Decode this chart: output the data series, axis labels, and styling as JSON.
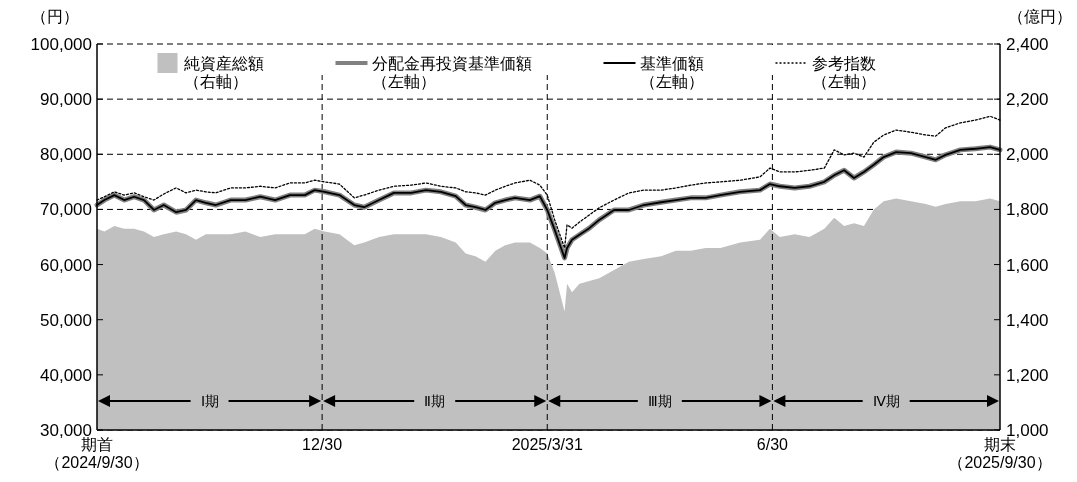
{
  "chart_data": {
    "type": "line",
    "ylabel": "（円）",
    "y2label": "（億円）",
    "x": [
      "2024-09-30",
      "2024-10-03",
      "2024-10-07",
      "2024-10-11",
      "2024-10-15",
      "2024-10-19",
      "2024-10-23",
      "2024-10-27",
      "2024-11-01",
      "2024-11-05",
      "2024-11-09",
      "2024-11-13",
      "2024-11-17",
      "2024-11-23",
      "2024-11-29",
      "2024-12-05",
      "2024-12-11",
      "2024-12-17",
      "2024-12-23",
      "2024-12-27",
      "2024-12-31",
      "2025-01-06",
      "2025-01-12",
      "2025-01-16",
      "2025-01-22",
      "2025-01-28",
      "2025-02-04",
      "2025-02-10",
      "2025-02-16",
      "2025-02-22",
      "2025-02-26",
      "2025-03-02",
      "2025-03-06",
      "2025-03-10",
      "2025-03-14",
      "2025-03-18",
      "2025-03-24",
      "2025-03-28",
      "2025-03-31",
      "2025-04-03",
      "2025-04-07",
      "2025-04-08",
      "2025-04-10",
      "2025-04-13",
      "2025-04-17",
      "2025-04-21",
      "2025-04-27",
      "2025-05-03",
      "2025-05-09",
      "2025-05-16",
      "2025-05-22",
      "2025-05-28",
      "2025-06-03",
      "2025-06-09",
      "2025-06-17",
      "2025-06-25",
      "2025-06-29",
      "2025-07-03",
      "2025-07-09",
      "2025-07-15",
      "2025-07-21",
      "2025-07-25",
      "2025-07-29",
      "2025-08-02",
      "2025-08-06",
      "2025-08-10",
      "2025-08-14",
      "2025-08-19",
      "2025-08-25",
      "2025-08-31",
      "2025-09-04",
      "2025-09-08",
      "2025-09-14",
      "2025-09-20",
      "2025-09-26",
      "2025-09-30"
    ],
    "series": [
      {
        "name": "純資産総額（右軸）",
        "type": "area",
        "axis": "y2",
        "color": "#c0c0c0",
        "values": [
          1730,
          1720,
          1740,
          1730,
          1730,
          1720,
          1700,
          1710,
          1720,
          1710,
          1690,
          1710,
          1710,
          1710,
          1720,
          1700,
          1710,
          1710,
          1710,
          1730,
          1720,
          1710,
          1670,
          1680,
          1700,
          1710,
          1710,
          1710,
          1700,
          1680,
          1640,
          1630,
          1610,
          1650,
          1670,
          1680,
          1680,
          1660,
          1640,
          1570,
          1430,
          1530,
          1500,
          1530,
          1540,
          1550,
          1580,
          1610,
          1620,
          1630,
          1650,
          1650,
          1660,
          1660,
          1680,
          1690,
          1730,
          1700,
          1710,
          1700,
          1730,
          1770,
          1740,
          1750,
          1740,
          1800,
          1830,
          1840,
          1830,
          1820,
          1810,
          1820,
          1830,
          1830,
          1840,
          1830
        ]
      },
      {
        "name": "分配金再投資基準価額（左軸）",
        "color": "#808080",
        "values": [
          70800,
          71700,
          72600,
          71700,
          72300,
          71700,
          69900,
          70800,
          69500,
          69900,
          71700,
          71200,
          70800,
          71700,
          71700,
          72300,
          71700,
          72600,
          72600,
          73500,
          73200,
          72600,
          70800,
          70400,
          71700,
          73000,
          73000,
          73500,
          73200,
          72400,
          70800,
          70400,
          69900,
          71200,
          71700,
          72100,
          71700,
          72400,
          69900,
          66300,
          61200,
          63000,
          64500,
          65400,
          66600,
          68100,
          69900,
          69900,
          70800,
          71300,
          71700,
          72100,
          72100,
          72600,
          73200,
          73500,
          74600,
          74200,
          73900,
          74200,
          75000,
          76200,
          77100,
          75700,
          76800,
          78100,
          79500,
          80400,
          80200,
          79500,
          79000,
          79900,
          80800,
          81000,
          81300,
          80800
        ]
      },
      {
        "name": "基準価額（左軸）",
        "color": "#000000",
        "values": [
          70800,
          71700,
          72600,
          71700,
          72300,
          71700,
          69900,
          70800,
          69500,
          69900,
          71700,
          71200,
          70800,
          71700,
          71700,
          72300,
          71700,
          72600,
          72600,
          73500,
          73200,
          72600,
          70800,
          70400,
          71700,
          73000,
          73000,
          73500,
          73200,
          72400,
          70800,
          70400,
          69900,
          71200,
          71700,
          72100,
          71700,
          72400,
          69900,
          66300,
          61200,
          63000,
          64500,
          65400,
          66600,
          68100,
          69900,
          69900,
          70800,
          71300,
          71700,
          72100,
          72100,
          72600,
          73200,
          73500,
          74600,
          74200,
          73900,
          74200,
          75000,
          76200,
          77100,
          75700,
          76800,
          78100,
          79500,
          80400,
          80200,
          79500,
          79000,
          79900,
          80800,
          81000,
          81300,
          80800
        ]
      },
      {
        "name": "参考指数（左軸）",
        "color": "#000000",
        "line_style": "dotted",
        "values": [
          71700,
          72300,
          73200,
          72600,
          73000,
          72300,
          71700,
          72800,
          73900,
          73000,
          73500,
          73200,
          73000,
          73900,
          73900,
          74200,
          73900,
          74800,
          74800,
          75300,
          75000,
          74600,
          72100,
          72600,
          73500,
          74200,
          74400,
          74800,
          74200,
          73900,
          73200,
          73000,
          72600,
          73500,
          74200,
          74800,
          75300,
          74400,
          72600,
          68100,
          63000,
          67200,
          66600,
          67700,
          69000,
          70300,
          71700,
          73000,
          73500,
          73500,
          73900,
          74400,
          74800,
          75000,
          75300,
          75900,
          77500,
          76800,
          76800,
          77100,
          77500,
          80800,
          79900,
          80200,
          79500,
          82200,
          83500,
          84400,
          84000,
          83500,
          83300,
          84800,
          85700,
          86200,
          86900,
          86200
        ]
      }
    ],
    "xlim": [
      "2024-09-30",
      "2025-09-30"
    ],
    "xticks": [
      {
        "value": "2024-09-30",
        "label": "期首（2024/9/30）"
      },
      {
        "value": "2024-12-30",
        "label": "12/30"
      },
      {
        "value": "2025-03-31",
        "label": "2025/3/31"
      },
      {
        "value": "2025-06-30",
        "label": "6/30"
      },
      {
        "value": "2025-09-30",
        "label": "期末（2025/9/30）"
      }
    ],
    "ylim": [
      30000,
      100000
    ],
    "yticks": [
      {
        "value": 30000,
        "label": "30,000"
      },
      {
        "value": 40000,
        "label": "40,000"
      },
      {
        "value": 50000,
        "label": "50,000"
      },
      {
        "value": 60000,
        "label": "60,000"
      },
      {
        "value": 70000,
        "label": "70,000"
      },
      {
        "value": 80000,
        "label": "80,000"
      },
      {
        "value": 90000,
        "label": "90,000"
      },
      {
        "value": 100000,
        "label": "100,000"
      }
    ],
    "y2lim": [
      1000,
      2400
    ],
    "y2ticks": [
      {
        "value": 1000,
        "label": "1,000"
      },
      {
        "value": 1200,
        "label": "1,200"
      },
      {
        "value": 1400,
        "label": "1,400"
      },
      {
        "value": 1600,
        "label": "1,600"
      },
      {
        "value": 1800,
        "label": "1,800"
      },
      {
        "value": 2000,
        "label": "2,000"
      },
      {
        "value": 2200,
        "label": "2,200"
      },
      {
        "value": 2400,
        "label": "2,400"
      }
    ],
    "ref_lines": [
      {
        "axis": "x",
        "value": "2024-12-30",
        "line_style": "dashed"
      },
      {
        "axis": "x",
        "value": "2025-03-31",
        "line_style": "dashed"
      },
      {
        "axis": "x",
        "value": "2025-06-30",
        "line_style": "dashed"
      }
    ],
    "annotations": [
      "Ⅰ期",
      "Ⅱ期",
      "Ⅲ期",
      "Ⅳ期"
    ],
    "grid": "y",
    "legend": "top"
  }
}
